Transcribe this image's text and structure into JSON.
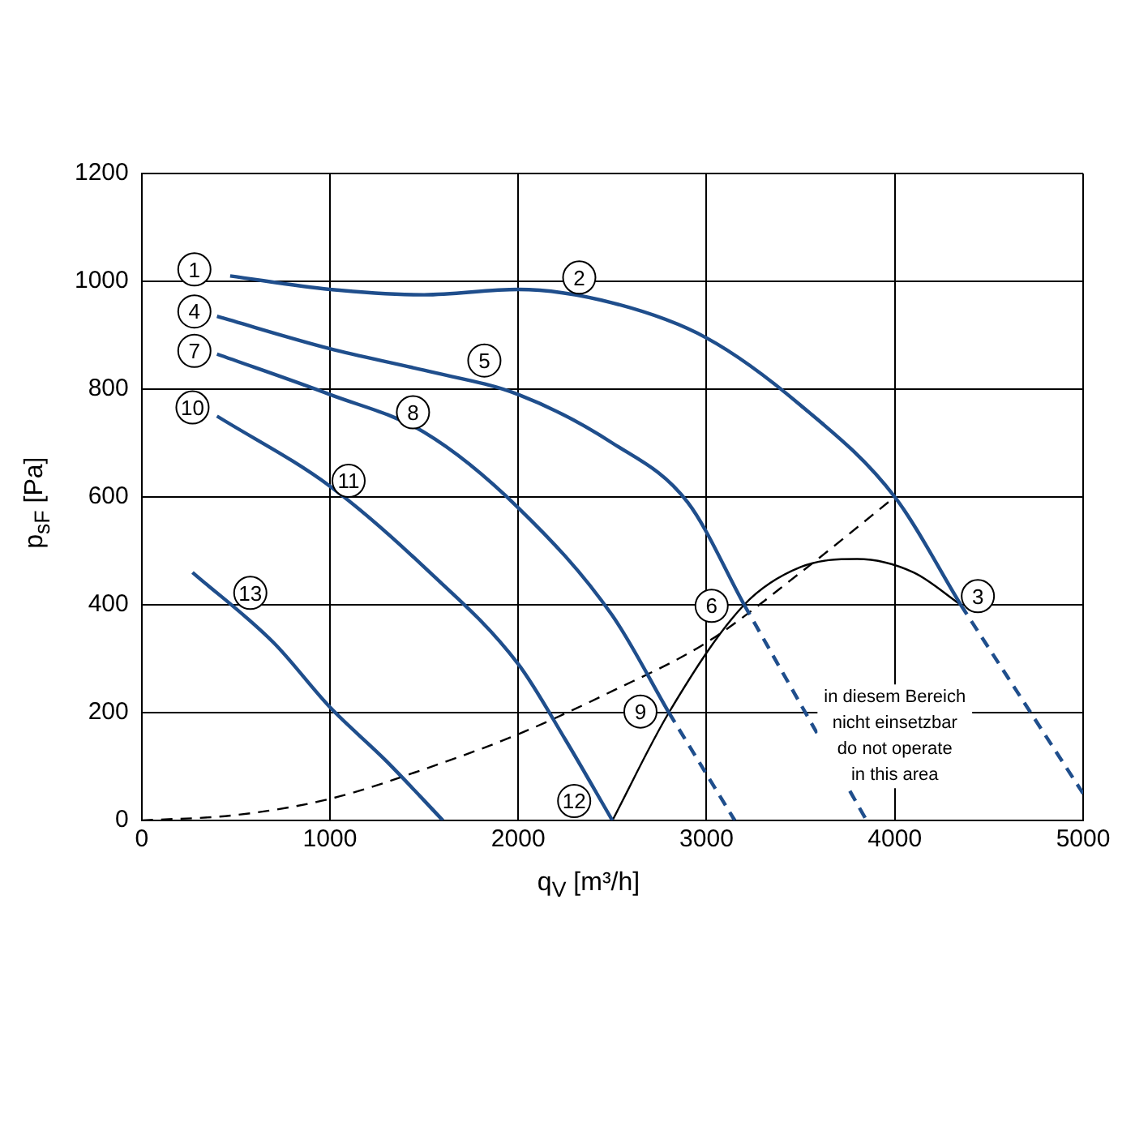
{
  "chart_data": {
    "type": "line",
    "xlabel": "q$_{V}$ [m³/h]",
    "ylabel": "p$_{sF}$ [Pa]",
    "xlim": [
      0,
      5000
    ],
    "ylim": [
      0,
      1200
    ],
    "xticks": [
      0,
      1000,
      2000,
      3000,
      4000,
      5000
    ],
    "yticks": [
      0,
      200,
      400,
      600,
      800,
      1000,
      1200
    ],
    "grid": true,
    "legend": false,
    "marker": "none",
    "series": [
      {
        "color": "#1f4e8c",
        "line_style": "solid",
        "x": [
          470,
          1000,
          1500,
          2000,
          2500,
          3000,
          3500,
          4000,
          4350
        ],
        "values": [
          1010,
          985,
          975,
          985,
          960,
          895,
          770,
          600,
          400
        ]
      },
      {
        "color": "#1f4e8c",
        "line_style": "dashed",
        "x": [
          4350,
          5000
        ],
        "values": [
          400,
          50
        ]
      },
      {
        "color": "#1f4e8c",
        "line_style": "solid",
        "x": [
          400,
          1000,
          1500,
          2000,
          2500,
          2900,
          3200
        ],
        "values": [
          935,
          875,
          835,
          790,
          700,
          590,
          400
        ]
      },
      {
        "color": "#1f4e8c",
        "line_style": "dashed",
        "x": [
          3200,
          3850
        ],
        "values": [
          400,
          0
        ]
      },
      {
        "color": "#1f4e8c",
        "line_style": "solid",
        "x": [
          400,
          1000,
          1500,
          2000,
          2500,
          2800
        ],
        "values": [
          865,
          790,
          720,
          580,
          380,
          200
        ]
      },
      {
        "color": "#1f4e8c",
        "line_style": "dashed",
        "x": [
          2800,
          3150
        ],
        "values": [
          200,
          0
        ]
      },
      {
        "color": "#1f4e8c",
        "line_style": "solid",
        "x": [
          400,
          1000,
          1500,
          2000,
          2250,
          2500
        ],
        "values": [
          750,
          620,
          470,
          290,
          150,
          0
        ]
      },
      {
        "color": "#1f4e8c",
        "line_style": "solid",
        "x": [
          270,
          700,
          1000,
          1300,
          1600
        ],
        "values": [
          460,
          330,
          210,
          110,
          0
        ]
      },
      {
        "color": "#000000",
        "line_style": "solid",
        "x": [
          2500,
          2800,
          3200,
          3500,
          3800,
          4100,
          4350
        ],
        "values": [
          0,
          200,
          400,
          470,
          485,
          460,
          400
        ]
      },
      {
        "color": "#000000",
        "line_style": "dashed",
        "x": [
          0,
          500,
          1000,
          1500,
          2000,
          2500,
          3000,
          3500,
          4000
        ],
        "values": [
          0,
          10,
          40,
          95,
          160,
          240,
          330,
          460,
          600
        ]
      }
    ],
    "annotations": [
      {
        "text": "1",
        "x": 280,
        "y": 1022
      },
      {
        "text": "2",
        "x": 2324,
        "y": 1007
      },
      {
        "text": "3",
        "x": 4441,
        "y": 416
      },
      {
        "text": "4",
        "x": 280,
        "y": 944
      },
      {
        "text": "5",
        "x": 1820,
        "y": 853
      },
      {
        "text": "6",
        "x": 3027,
        "y": 398
      },
      {
        "text": "7",
        "x": 280,
        "y": 871
      },
      {
        "text": "8",
        "x": 1441,
        "y": 757
      },
      {
        "text": "9",
        "x": 2649,
        "y": 202
      },
      {
        "text": "10",
        "x": 270,
        "y": 766
      },
      {
        "text": "11",
        "x": 1099,
        "y": 630
      },
      {
        "text": "12",
        "x": 2297,
        "y": 36
      },
      {
        "text": "13",
        "x": 577,
        "y": 422
      },
      "in diesem Bereich\nnicht einsetzbar\ndo not operate\nin this area"
    ]
  }
}
